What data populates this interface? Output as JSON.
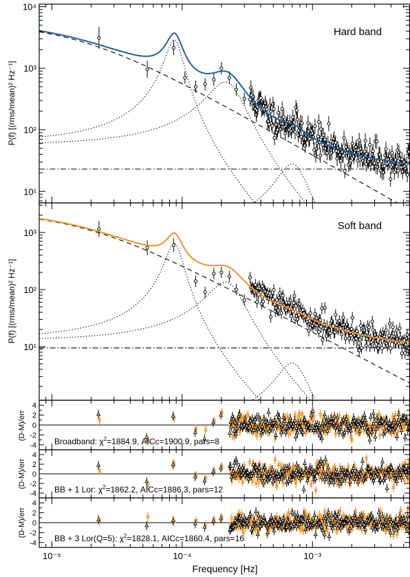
{
  "colors": {
    "hard_model": "#1f5f9e",
    "soft_model": "#f0921e",
    "data": "#000000"
  },
  "chart_data": [
    {
      "type": "line",
      "panel": "hard",
      "label": "Hard band",
      "ylabel": "P(f) [(rms/mean)² Hz⁻¹]",
      "xscale": "log",
      "yscale": "log",
      "xlim": [
        8e-06,
        0.0056
      ],
      "ylim": [
        6.5,
        11000
      ],
      "yticks": [
        {
          "value": 10,
          "label": "10¹"
        },
        {
          "value": 100,
          "label": "10²"
        },
        {
          "value": 1000,
          "label": "10³"
        },
        {
          "value": 10000,
          "label": "10⁴"
        }
      ],
      "model": {
        "total": {
          "name": "Model",
          "style": "solid"
        },
        "components": [
          {
            "kind": "broken-powerlaw",
            "amp": 5600,
            "fb": 1.6e-05,
            "alpha": 1.2,
            "style": "dashed"
          },
          {
            "kind": "lorentzian",
            "f0": 8.7e-05,
            "w": 1.3e-05,
            "peak": 2900,
            "style": "dotted"
          },
          {
            "kind": "lorentzian",
            "f0": 0.000215,
            "w": 7e-05,
            "peak": 600,
            "style": "dotted"
          },
          {
            "kind": "lorentzian",
            "f0": 0.0007,
            "w": 0.00019,
            "peak": 28,
            "style": "dotted"
          },
          {
            "kind": "constant",
            "value": 23,
            "style": "dashdot"
          }
        ]
      },
      "low_points": [
        {
          "x": 2.3e-05,
          "y": 3100,
          "err": 0.18
        },
        {
          "x": 5.4e-05,
          "y": 960,
          "err": 0.14
        },
        {
          "x": 8.6e-05,
          "y": 2150,
          "err": 0.12
        },
        {
          "x": 0.000105,
          "y": 700,
          "err": 0.1
        },
        {
          "x": 0.000127,
          "y": 500,
          "err": 0.1
        },
        {
          "x": 0.00015,
          "y": 550,
          "err": 0.1
        },
        {
          "x": 0.000175,
          "y": 650,
          "err": 0.1
        },
        {
          "x": 0.0002,
          "y": 1000,
          "err": 0.1
        },
        {
          "x": 0.00023,
          "y": 700,
          "err": 0.1
        },
        {
          "x": 0.00026,
          "y": 450,
          "err": 0.1
        },
        {
          "x": 0.0003,
          "y": 320,
          "err": 0.1
        }
      ],
      "noise": {
        "f_start": 0.00033,
        "n": 210,
        "scatter_dex": 0.13,
        "err_dex": 0.12
      }
    },
    {
      "type": "line",
      "panel": "soft",
      "label": "Soft band",
      "ylabel": "P(f) [(rms/mean)² Hz⁻¹]",
      "xscale": "log",
      "yscale": "log",
      "xlim": [
        8e-06,
        0.0056
      ],
      "ylim": [
        1.15,
        3300
      ],
      "yticks": [
        {
          "value": 10,
          "label": "10¹"
        },
        {
          "value": 100,
          "label": "10²"
        },
        {
          "value": 1000,
          "label": "10³"
        }
      ],
      "model": {
        "total": {
          "name": "Model",
          "style": "solid"
        },
        "components": [
          {
            "kind": "broken-powerlaw",
            "amp": 2400,
            "fb": 1.7e-05,
            "alpha": 1.2,
            "style": "dashed"
          },
          {
            "kind": "lorentzian",
            "f0": 8.7e-05,
            "w": 1.3e-05,
            "peak": 640,
            "style": "dotted"
          },
          {
            "kind": "lorentzian",
            "f0": 0.000215,
            "w": 7e-05,
            "peak": 135,
            "style": "dotted"
          },
          {
            "kind": "lorentzian",
            "f0": 0.0007,
            "w": 0.00019,
            "peak": 5.2,
            "style": "dotted"
          },
          {
            "kind": "constant",
            "value": 9.5,
            "style": "dashdot"
          }
        ]
      },
      "low_points": [
        {
          "x": 2.3e-05,
          "y": 1150,
          "err": 0.14
        },
        {
          "x": 5.4e-05,
          "y": 540,
          "err": 0.13
        },
        {
          "x": 8.6e-05,
          "y": 600,
          "err": 0.12
        },
        {
          "x": 0.000127,
          "y": 140,
          "err": 0.1
        },
        {
          "x": 0.00015,
          "y": 90,
          "err": 0.1
        },
        {
          "x": 0.000175,
          "y": 190,
          "err": 0.1
        },
        {
          "x": 0.0002,
          "y": 200,
          "err": 0.1
        },
        {
          "x": 0.00023,
          "y": 170,
          "err": 0.1
        },
        {
          "x": 0.00026,
          "y": 100,
          "err": 0.1
        },
        {
          "x": 0.0003,
          "y": 65,
          "err": 0.1
        }
      ],
      "noise": {
        "f_start": 0.00033,
        "n": 210,
        "scatter_dex": 0.11,
        "err_dex": 0.1
      }
    },
    {
      "type": "scatter",
      "panel": "residual-1",
      "ylabel": "(D-M)/err",
      "ylim": [
        -5,
        5
      ],
      "yticks": [
        -4,
        -2,
        0,
        2,
        4
      ],
      "annotation": {
        "prefix": "Broadband: ",
        "chi_symbol": "χ",
        "chi_exp": "2",
        "suffix": "=1884.9, AICc=1900.9, pars=8"
      },
      "peaks": [
        {
          "x": 2.3e-05,
          "hard": 2.2,
          "soft": 1.0
        },
        {
          "x": 5.4e-05,
          "hard": -2.5,
          "soft": -3.2
        },
        {
          "x": 8.6e-05,
          "hard": 1.8,
          "soft": 1.4
        },
        {
          "x": 0.000127,
          "hard": -1.5,
          "soft": -0.8
        },
        {
          "x": 0.00015,
          "hard": -2.8,
          "soft": -1.0
        },
        {
          "x": 0.000175,
          "hard": 0.5,
          "soft": 0.8
        },
        {
          "x": 0.0002,
          "hard": 2.0,
          "soft": 2.5
        }
      ],
      "noise": {
        "f_start": 0.00023,
        "n": 200,
        "scatter": 1.1,
        "err": 0.9
      }
    },
    {
      "type": "scatter",
      "panel": "residual-2",
      "ylabel": "(D-M)/err",
      "ylim": [
        -5,
        5
      ],
      "yticks": [
        -4,
        -2,
        0,
        2,
        4
      ],
      "annotation": {
        "prefix": "BB + 1 Lor: ",
        "chi_symbol": "χ",
        "chi_exp": "2",
        "suffix": "=1862.2, AICc=1886.3, pars=12"
      },
      "peaks": [
        {
          "x": 2.3e-05,
          "hard": 1.8,
          "soft": 0.6
        },
        {
          "x": 5.4e-05,
          "hard": -1.6,
          "soft": -2.4
        },
        {
          "x": 8.6e-05,
          "hard": 1.9,
          "soft": 2.1
        },
        {
          "x": 0.000127,
          "hard": -0.6,
          "soft": -0.3
        },
        {
          "x": 0.00015,
          "hard": -1.5,
          "soft": -0.8
        },
        {
          "x": 0.000175,
          "hard": 0.4,
          "soft": 0.6
        },
        {
          "x": 0.0002,
          "hard": 1.2,
          "soft": 1.5
        }
      ],
      "noise": {
        "f_start": 0.00023,
        "n": 200,
        "scatter": 1.0,
        "err": 0.9
      }
    },
    {
      "type": "scatter",
      "panel": "residual-3",
      "ylabel": "(D-M)/err",
      "xlabel": "Frequency [Hz]",
      "xticks": [
        {
          "value": 1e-05,
          "label": "10⁻⁵"
        },
        {
          "value": 0.0001,
          "label": "10⁻⁴"
        },
        {
          "value": 0.001,
          "label": "10⁻³"
        }
      ],
      "ylim": [
        -5,
        5
      ],
      "yticks": [
        -4,
        -2,
        0,
        2,
        4
      ],
      "annotation": {
        "prefix": "BB + 3 Lor(Q=5): ",
        "chi_symbol": "χ",
        "chi_exp": "2",
        "suffix": "=1828.1, AICc=1860.4, pars=16"
      },
      "peaks": [
        {
          "x": 2.3e-05,
          "hard": 0.6,
          "soft": 0.4
        },
        {
          "x": 5.4e-05,
          "hard": -0.6,
          "soft": 1.2
        },
        {
          "x": 8.6e-05,
          "hard": 0.4,
          "soft": 0.2
        },
        {
          "x": 0.000127,
          "hard": -0.2,
          "soft": 0.4
        },
        {
          "x": 0.00015,
          "hard": -0.9,
          "soft": -0.5
        },
        {
          "x": 0.000175,
          "hard": 0.3,
          "soft": 0.5
        },
        {
          "x": 0.0002,
          "hard": 0.8,
          "soft": 1.0
        }
      ],
      "noise": {
        "f_start": 0.00023,
        "n": 200,
        "scatter": 1.0,
        "err": 0.9
      }
    }
  ]
}
